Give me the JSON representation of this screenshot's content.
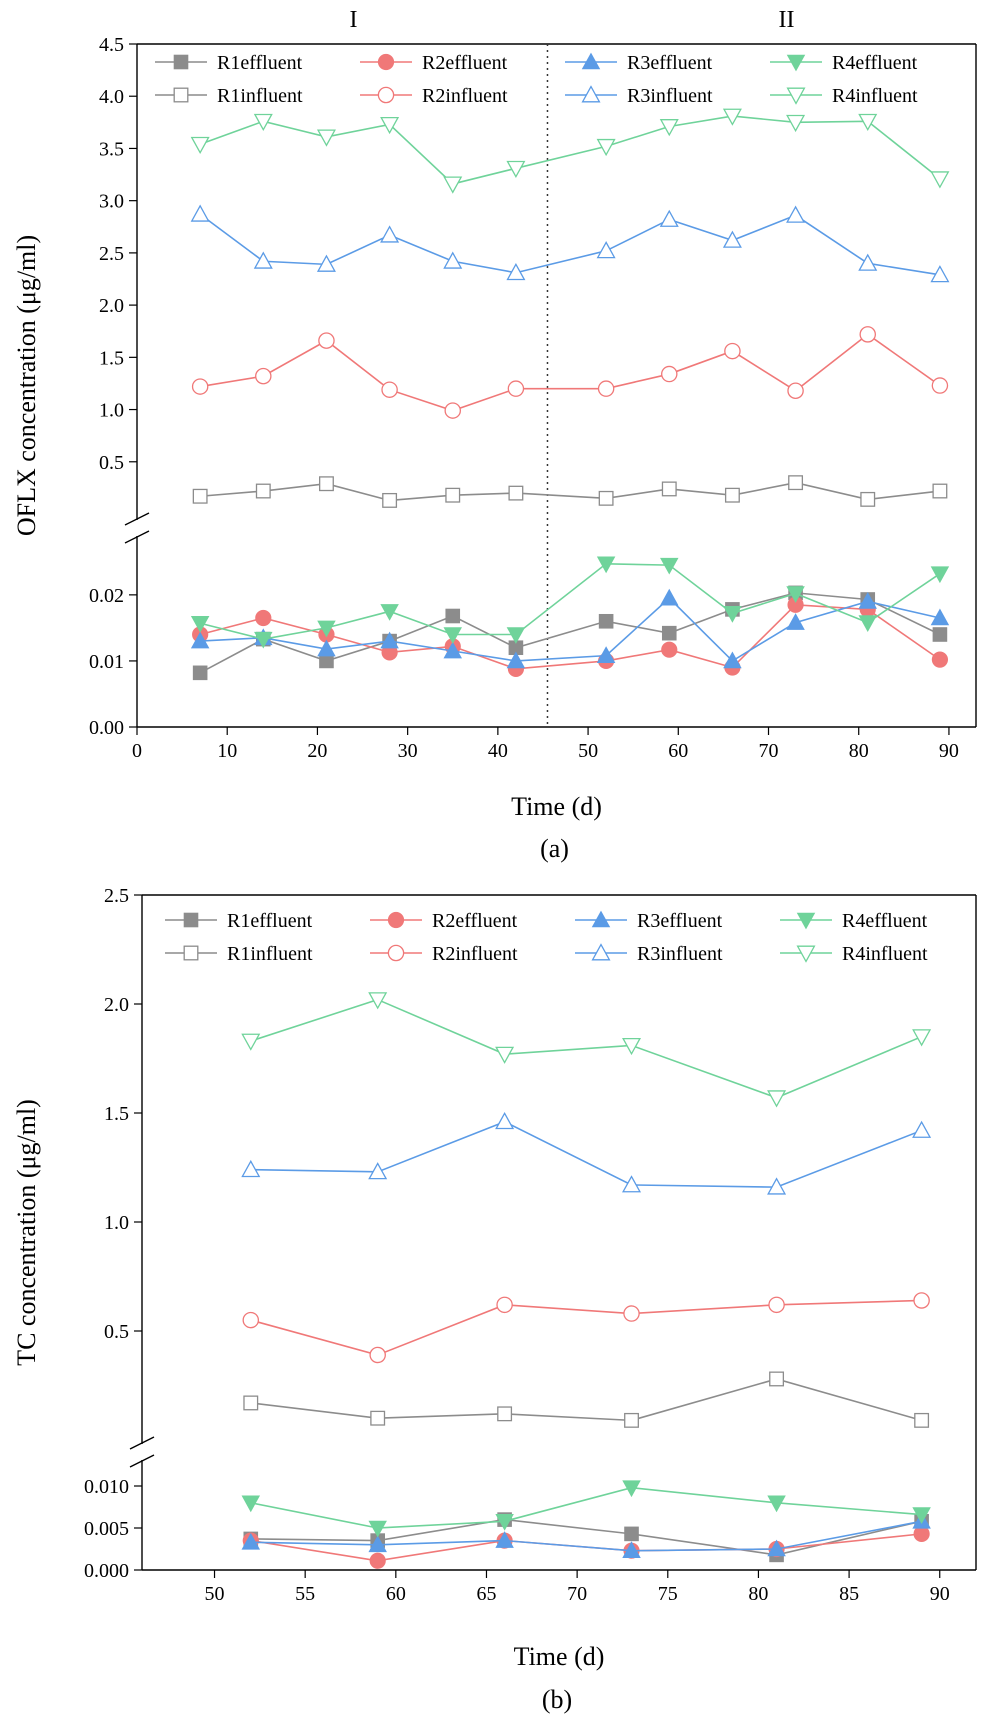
{
  "colors": {
    "R1": "#8c8c8c",
    "R2": "#f07878",
    "R3": "#5b9be6",
    "R4": "#6fd39a"
  },
  "chart_data": [
    {
      "id": "panel-a",
      "type": "line",
      "panel_label": "(a)",
      "xlabel": "Time (d)",
      "ylabel": "OFLX concentration (μg/ml)",
      "xlim": [
        0,
        93
      ],
      "x_ticks": [
        0,
        10,
        20,
        30,
        40,
        50,
        60,
        70,
        80,
        90
      ],
      "x_tick_labels": [
        "0",
        "10",
        "20",
        "30",
        "40",
        "50",
        "60",
        "70",
        "80",
        "90"
      ],
      "y_break": true,
      "y_lower_range": [
        0,
        0.028
      ],
      "y_lower_ticks": [
        0.0,
        0.01,
        0.02
      ],
      "y_lower_tick_labels": [
        "0.00",
        "0.01",
        "0.02"
      ],
      "y_upper_range": [
        0.0,
        4.5
      ],
      "y_upper_ticks": [
        0.5,
        1.0,
        1.5,
        2.0,
        2.5,
        3.0,
        3.5,
        4.0,
        4.5
      ],
      "y_upper_tick_labels": [
        "0.5",
        "1.0",
        "1.5",
        "2.0",
        "2.5",
        "3.0",
        "3.5",
        "4.0",
        "4.5"
      ],
      "phase_divider_x": 45.5,
      "phase_labels": [
        "I",
        "II"
      ],
      "legend_position": "top",
      "x": [
        7,
        14,
        21,
        28,
        35,
        42,
        52,
        59,
        66,
        73,
        81,
        89
      ],
      "series": [
        {
          "name": "R1effluent",
          "reactor": "R1",
          "marker": "square-filled",
          "segment": "lower",
          "values": [
            0.0082,
            0.0133,
            0.01,
            0.013,
            0.0168,
            0.012,
            0.016,
            0.0142,
            0.0178,
            0.0203,
            0.0193,
            0.014
          ]
        },
        {
          "name": "R2effluent",
          "reactor": "R2",
          "marker": "circle-filled",
          "segment": "lower",
          "values": [
            0.014,
            0.0165,
            0.014,
            0.0113,
            0.0122,
            0.0088,
            0.01,
            0.0117,
            0.009,
            0.0185,
            0.0178,
            0.0102
          ]
        },
        {
          "name": "R3effluent",
          "reactor": "R3",
          "marker": "triangle-up-filled",
          "segment": "lower",
          "values": [
            0.013,
            0.0135,
            0.0118,
            0.013,
            0.0115,
            0.01,
            0.0108,
            0.0195,
            0.01,
            0.0158,
            0.019,
            0.0165
          ]
        },
        {
          "name": "R4effluent",
          "reactor": "R4",
          "marker": "triangle-down-filled",
          "segment": "lower",
          "values": [
            0.0157,
            0.0133,
            0.015,
            0.0175,
            0.014,
            0.014,
            0.0247,
            0.0245,
            0.0172,
            0.0202,
            0.0158,
            0.0232
          ]
        },
        {
          "name": "R1influent",
          "reactor": "R1",
          "marker": "square-open",
          "segment": "upper",
          "values": [
            0.17,
            0.22,
            0.29,
            0.13,
            0.18,
            0.2,
            0.15,
            0.24,
            0.18,
            0.3,
            0.14,
            0.22
          ]
        },
        {
          "name": "R2influent",
          "reactor": "R2",
          "marker": "circle-open",
          "segment": "upper",
          "values": [
            1.22,
            1.32,
            1.66,
            1.19,
            0.99,
            1.2,
            1.2,
            1.34,
            1.56,
            1.18,
            1.72,
            1.23
          ]
        },
        {
          "name": "R3influent",
          "reactor": "R3",
          "marker": "triangle-up-open",
          "segment": "upper",
          "values": [
            2.87,
            2.42,
            2.39,
            2.67,
            2.42,
            2.31,
            2.52,
            2.82,
            2.62,
            2.86,
            2.4,
            2.29
          ]
        },
        {
          "name": "R4influent",
          "reactor": "R4",
          "marker": "triangle-down-open",
          "segment": "upper",
          "values": [
            3.54,
            3.76,
            3.61,
            3.73,
            3.16,
            3.31,
            3.52,
            3.71,
            3.81,
            3.75,
            3.76,
            3.21
          ]
        }
      ]
    },
    {
      "id": "panel-b",
      "type": "line",
      "panel_label": "(b)",
      "xlabel": "Time (d)",
      "ylabel": "TC concentration (μg/ml)",
      "xlim": [
        46,
        92
      ],
      "x_ticks": [
        50,
        55,
        60,
        65,
        70,
        75,
        80,
        85,
        90
      ],
      "x_tick_labels": [
        "50",
        "55",
        "60",
        "65",
        "70",
        "75",
        "80",
        "85",
        "90"
      ],
      "y_break": true,
      "y_lower_range": [
        0,
        0.0125
      ],
      "y_lower_ticks": [
        0.0,
        0.005,
        0.01
      ],
      "y_lower_tick_labels": [
        "0.000",
        "0.005",
        "0.010"
      ],
      "y_upper_range": [
        0.0,
        2.5
      ],
      "y_upper_ticks": [
        0.5,
        1.0,
        1.5,
        2.0,
        2.5
      ],
      "y_upper_tick_labels": [
        "0.5",
        "1.0",
        "1.5",
        "2.0",
        "2.5"
      ],
      "legend_position": "top",
      "x": [
        52,
        59,
        66,
        73,
        81,
        89
      ],
      "series": [
        {
          "name": "R1effluent",
          "reactor": "R1",
          "marker": "square-filled",
          "segment": "lower",
          "values": [
            0.0037,
            0.0035,
            0.006,
            0.0043,
            0.0018,
            0.0058
          ]
        },
        {
          "name": "R2effluent",
          "reactor": "R2",
          "marker": "circle-filled",
          "segment": "lower",
          "values": [
            0.0035,
            0.0011,
            0.0035,
            0.0023,
            0.0025,
            0.0043
          ]
        },
        {
          "name": "R3effluent",
          "reactor": "R3",
          "marker": "triangle-up-filled",
          "segment": "lower",
          "values": [
            0.0033,
            0.003,
            0.0035,
            0.0023,
            0.0025,
            0.0058
          ]
        },
        {
          "name": "R4effluent",
          "reactor": "R4",
          "marker": "triangle-down-filled",
          "segment": "lower",
          "values": [
            0.008,
            0.005,
            0.0058,
            0.0098,
            0.008,
            0.0066
          ]
        },
        {
          "name": "R1influent",
          "reactor": "R1",
          "marker": "square-open",
          "segment": "upper",
          "values": [
            0.17,
            0.1,
            0.12,
            0.09,
            0.28,
            0.09
          ]
        },
        {
          "name": "R2influent",
          "reactor": "R2",
          "marker": "circle-open",
          "segment": "upper",
          "values": [
            0.55,
            0.39,
            0.62,
            0.58,
            0.62,
            0.64
          ]
        },
        {
          "name": "R3influent",
          "reactor": "R3",
          "marker": "triangle-up-open",
          "segment": "upper",
          "values": [
            1.24,
            1.23,
            1.46,
            1.17,
            1.16,
            1.42
          ]
        },
        {
          "name": "R4influent",
          "reactor": "R4",
          "marker": "triangle-down-open",
          "segment": "upper",
          "values": [
            1.83,
            2.02,
            1.77,
            1.81,
            1.57,
            1.85
          ]
        }
      ]
    }
  ]
}
